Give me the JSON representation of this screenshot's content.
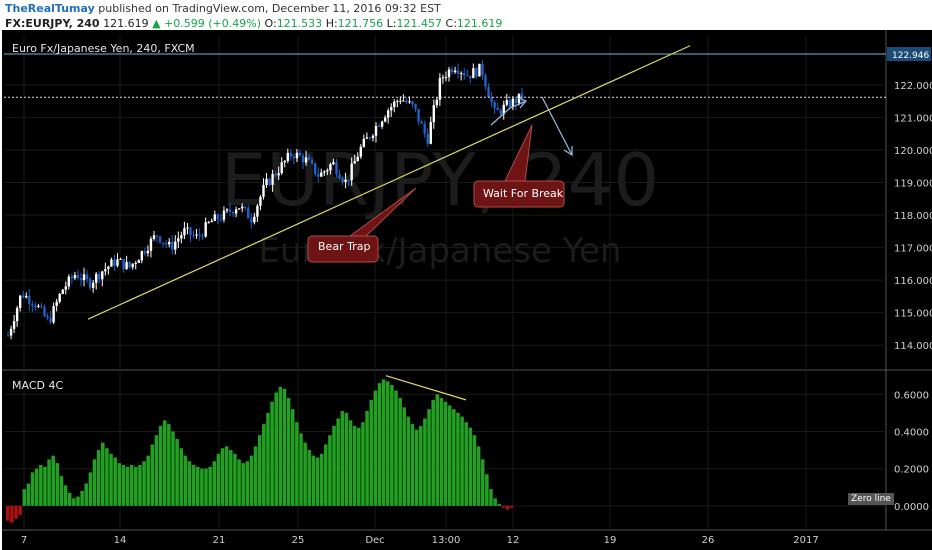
{
  "header": {
    "author": "TheRealTumay",
    "published": "published on TradingView.com, December 11, 2016 09:32 EST",
    "symbol": "FX:EURJPY, 240",
    "last": "121.619",
    "change": "+0.599 (+0.49%)",
    "o_label": "O:",
    "o_val": "121.533",
    "h_label": "H:",
    "h_val": "121.756",
    "l_label": "L:",
    "l_val": "121.457",
    "c_label": "C:",
    "c_val": "121.619"
  },
  "chart_title": "Euro Fx/Japanese Yen, 240, FXCM",
  "watermark": {
    "main": "EURJPY, 240",
    "sub": "Euro Fx/Japanese Yen"
  },
  "annotations": {
    "bear_trap": "Bear Trap",
    "wait": "Wait For Break"
  },
  "macd_title": "MACD 4C",
  "zero_line_label": "Zero line",
  "colors": {
    "bg": "#000000",
    "up": "#ffffff",
    "down": "#1e63c8",
    "trend": "#d9d96a",
    "hline": "#7ab3d6",
    "macd_pos": "#22a022",
    "macd_neg": "#aa1111",
    "callout": "#6e1414"
  },
  "chart_data": [
    {
      "type": "candlestick",
      "title": "Euro Fx/Japanese Yen, 240, FXCM",
      "x_ticks": [
        "7",
        "14",
        "21",
        "25",
        "Dec",
        "13:00",
        "12",
        "19",
        "26",
        "2017"
      ],
      "y_ticks": [
        114.0,
        115.0,
        116.0,
        117.0,
        118.0,
        119.0,
        120.0,
        121.0,
        122.0
      ],
      "ylim": [
        113.3,
        123.5
      ],
      "horizontal_level": 122.946,
      "last_price": 121.619,
      "price_path": [
        114.3,
        115.6,
        115.3,
        114.7,
        115.7,
        116.2,
        115.9,
        116.3,
        116.6,
        116.4,
        116.9,
        117.4,
        117.0,
        117.5,
        117.3,
        117.8,
        118.0,
        118.3,
        117.9,
        118.9,
        119.4,
        119.9,
        119.7,
        119.2,
        119.6,
        119.0,
        120.0,
        120.6,
        121.2,
        121.6,
        121.3,
        120.3,
        122.2,
        122.6,
        122.3,
        122.5,
        121.1,
        121.4,
        121.619
      ]
    },
    {
      "type": "histogram",
      "title": "MACD 4C",
      "y_ticks": [
        0.0,
        0.2,
        0.4,
        0.6
      ],
      "ylim": [
        -0.13,
        0.72
      ],
      "values": [
        -0.08,
        -0.09,
        -0.07,
        -0.05,
        0.09,
        0.12,
        0.18,
        0.2,
        0.22,
        0.21,
        0.25,
        0.27,
        0.23,
        0.16,
        0.11,
        0.07,
        0.04,
        0.05,
        0.08,
        0.12,
        0.18,
        0.25,
        0.3,
        0.34,
        0.31,
        0.28,
        0.26,
        0.23,
        0.22,
        0.21,
        0.22,
        0.21,
        0.22,
        0.24,
        0.27,
        0.33,
        0.38,
        0.43,
        0.46,
        0.44,
        0.4,
        0.36,
        0.31,
        0.27,
        0.24,
        0.22,
        0.21,
        0.2,
        0.2,
        0.21,
        0.24,
        0.28,
        0.31,
        0.32,
        0.3,
        0.28,
        0.25,
        0.23,
        0.24,
        0.27,
        0.32,
        0.38,
        0.44,
        0.5,
        0.56,
        0.61,
        0.64,
        0.63,
        0.58,
        0.52,
        0.45,
        0.39,
        0.34,
        0.3,
        0.27,
        0.26,
        0.28,
        0.33,
        0.38,
        0.43,
        0.47,
        0.51,
        0.5,
        0.46,
        0.43,
        0.42,
        0.45,
        0.51,
        0.57,
        0.62,
        0.66,
        0.68,
        0.67,
        0.65,
        0.62,
        0.58,
        0.53,
        0.48,
        0.44,
        0.41,
        0.43,
        0.47,
        0.52,
        0.57,
        0.6,
        0.58,
        0.56,
        0.54,
        0.52,
        0.5,
        0.48,
        0.45,
        0.42,
        0.38,
        0.32,
        0.25,
        0.17,
        0.09,
        0.04,
        0.01,
        -0.01,
        -0.02,
        -0.01
      ]
    }
  ]
}
